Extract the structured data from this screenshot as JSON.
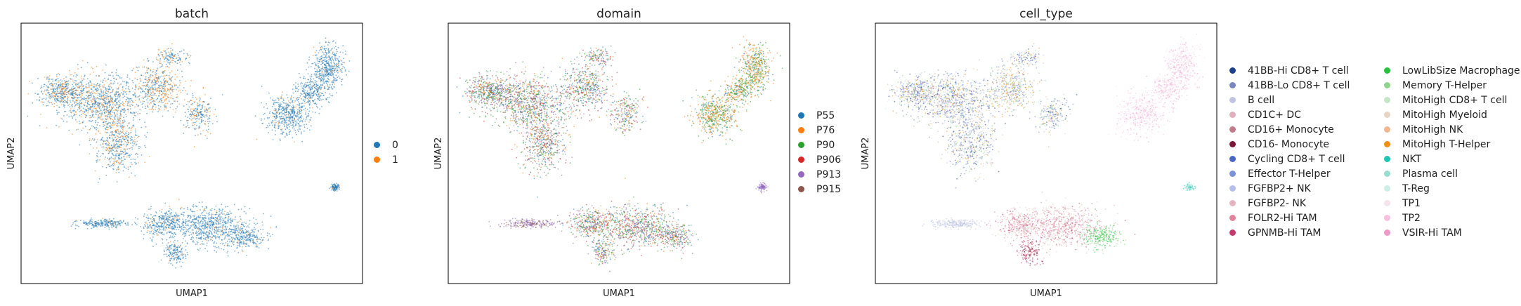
{
  "chart_data": [
    {
      "type": "scatter",
      "title": "batch",
      "xlabel": "UMAP1",
      "ylabel": "UMAP2",
      "grid": false,
      "legend_position": "right",
      "series": [
        {
          "name": "0",
          "color": "#1f77b4"
        },
        {
          "name": "1",
          "color": "#ff7f0e"
        }
      ]
    },
    {
      "type": "scatter",
      "title": "domain",
      "xlabel": "UMAP1",
      "ylabel": "UMAP2",
      "grid": false,
      "legend_position": "right",
      "series": [
        {
          "name": "P55",
          "color": "#1f77b4"
        },
        {
          "name": "P76",
          "color": "#ff7f0e"
        },
        {
          "name": "P90",
          "color": "#2ca02c"
        },
        {
          "name": "P906",
          "color": "#d62728"
        },
        {
          "name": "P913",
          "color": "#9467bd"
        },
        {
          "name": "P915",
          "color": "#8c564b"
        }
      ]
    },
    {
      "type": "scatter",
      "title": "cell_type",
      "xlabel": "UMAP1",
      "ylabel": "UMAP2",
      "grid": false,
      "legend_position": "right",
      "series": [
        {
          "name": "41BB-Hi CD8+ T cell",
          "color": "#1f3f8f"
        },
        {
          "name": "41BB-Lo CD8+ T cell",
          "color": "#7986c0"
        },
        {
          "name": "B cell",
          "color": "#c0c4e2"
        },
        {
          "name": "CD1C+ DC",
          "color": "#e0b0bc"
        },
        {
          "name": "CD16+ Monocyte",
          "color": "#c07a88"
        },
        {
          "name": "CD16- Monocyte",
          "color": "#7b1638"
        },
        {
          "name": "Cycling CD8+ T cell",
          "color": "#4a66c4"
        },
        {
          "name": "Effector T-Helper",
          "color": "#7b92d8"
        },
        {
          "name": "FGFBP2+ NK",
          "color": "#b6bfe8"
        },
        {
          "name": "FGFBP2- NK",
          "color": "#e6b4c0"
        },
        {
          "name": "FOLR2-Hi TAM",
          "color": "#e0849c"
        },
        {
          "name": "GPNMB-Hi TAM",
          "color": "#c63a6a"
        },
        {
          "name": "LowLibSize Macrophage",
          "color": "#26c43e"
        },
        {
          "name": "Memory T-Helper",
          "color": "#8fd48e"
        },
        {
          "name": "MitoHigh CD8+ T cell",
          "color": "#c6e4c6"
        },
        {
          "name": "MitoHigh Myeloid",
          "color": "#e8d4c4"
        },
        {
          "name": "MitoHigh NK",
          "color": "#f0b890"
        },
        {
          "name": "MitoHigh T-Helper",
          "color": "#ef9014"
        },
        {
          "name": "NKT",
          "color": "#19c7b3"
        },
        {
          "name": "Plasma cell",
          "color": "#97dccf"
        },
        {
          "name": "T-Reg",
          "color": "#cdeee6"
        },
        {
          "name": "TP1",
          "color": "#f6e4ec"
        },
        {
          "name": "TP2",
          "color": "#f6c2de"
        },
        {
          "name": "VSIR-Hi TAM",
          "color": "#ee9ac8"
        }
      ]
    }
  ]
}
